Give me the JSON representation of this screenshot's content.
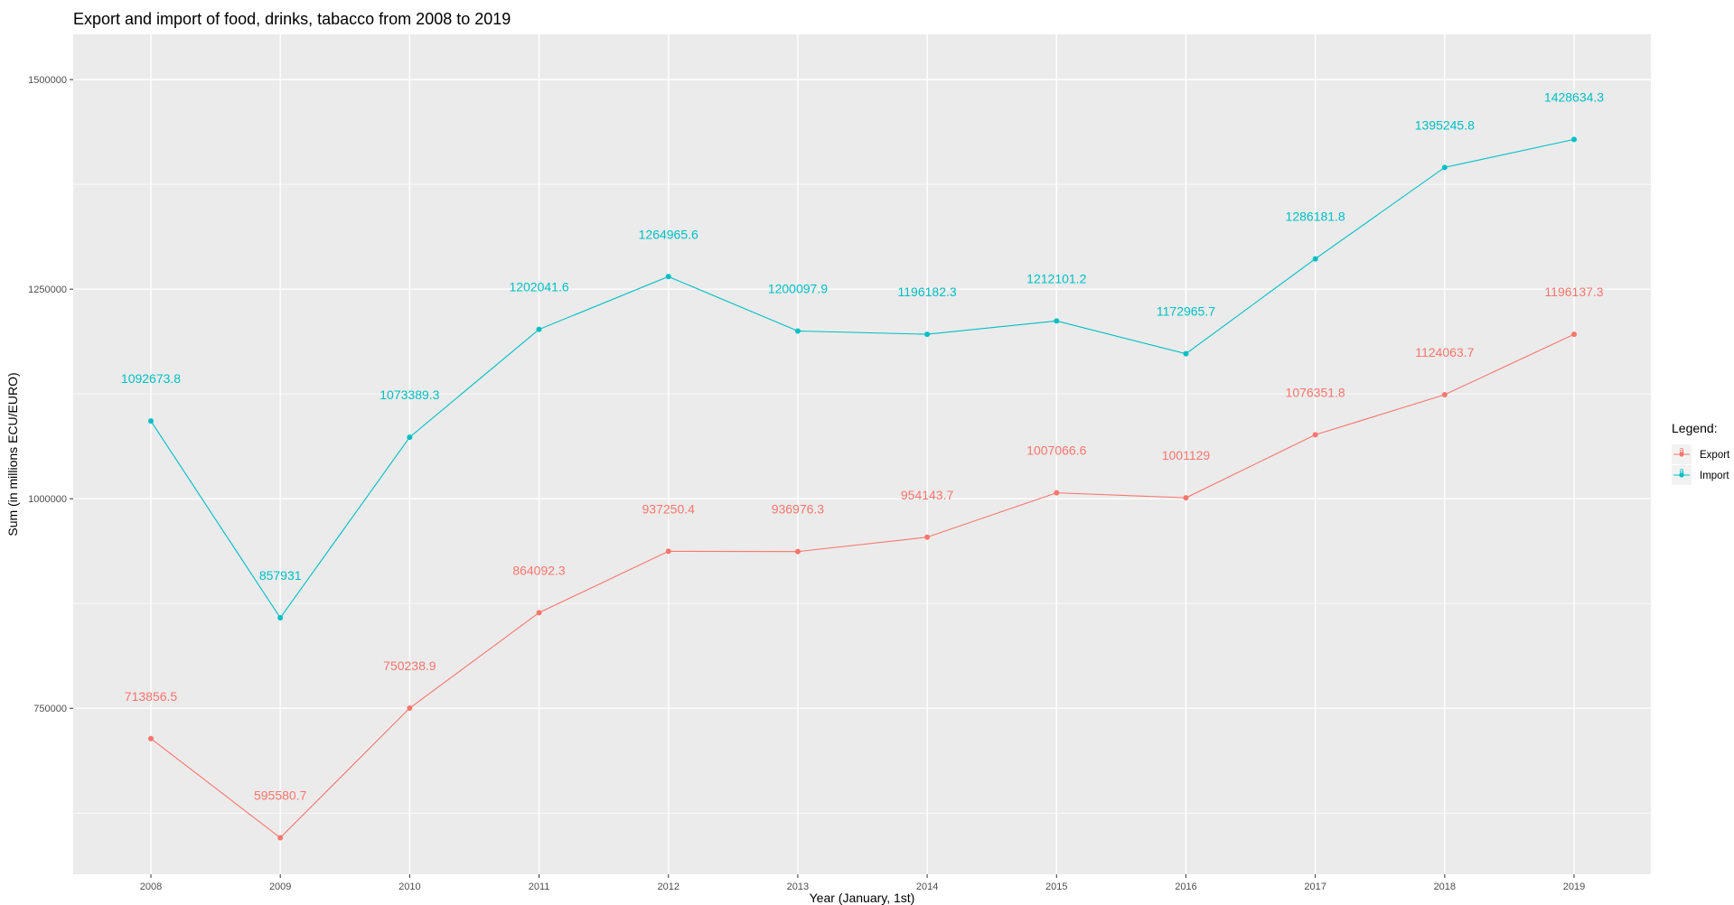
{
  "chart_data": {
    "type": "line",
    "title": "Export and import of food, drinks, tabacco from 2008 to 2019",
    "xlabel": "Year (January, 1st)",
    "ylabel": "Sum (in millions ECU/EURO)",
    "x": [
      "2008",
      "2009",
      "2010",
      "2011",
      "2012",
      "2013",
      "2014",
      "2015",
      "2016",
      "2017",
      "2018",
      "2019"
    ],
    "y_ticks": [
      750000,
      1000000,
      1250000,
      1500000
    ],
    "y_tick_labels": [
      "750000",
      "1000000",
      "1250000",
      "1500000"
    ],
    "ylim": [
      552000,
      1554000
    ],
    "grid": true,
    "legend": {
      "title": "Legend:",
      "position": "right"
    },
    "series": [
      {
        "name": "Export",
        "color": "#f8766d",
        "values": [
          713856.5,
          595580.7,
          750238.9,
          864092.3,
          937250.4,
          936976.3,
          954143.7,
          1007066.6,
          1001129,
          1076351.8,
          1124063.7,
          1196137.3
        ],
        "labels": [
          "713856.5",
          "595580.7",
          "750238.9",
          "864092.3",
          "937250.4",
          "936976.3",
          "954143.7",
          "1007066.6",
          "1001129",
          "1076351.8",
          "1124063.7",
          "1196137.3"
        ]
      },
      {
        "name": "Import",
        "color": "#00bfc4",
        "values": [
          1092673.8,
          857931,
          1073389.3,
          1202041.6,
          1264965.6,
          1200097.9,
          1196182.3,
          1212101.2,
          1172965.7,
          1286181.8,
          1395245.8,
          1428634.3
        ],
        "labels": [
          "1092673.8",
          "857931",
          "1073389.3",
          "1202041.6",
          "1264965.6",
          "1200097.9",
          "1196182.3",
          "1212101.2",
          "1172965.7",
          "1286181.8",
          "1395245.8",
          "1428634.3"
        ]
      }
    ]
  }
}
